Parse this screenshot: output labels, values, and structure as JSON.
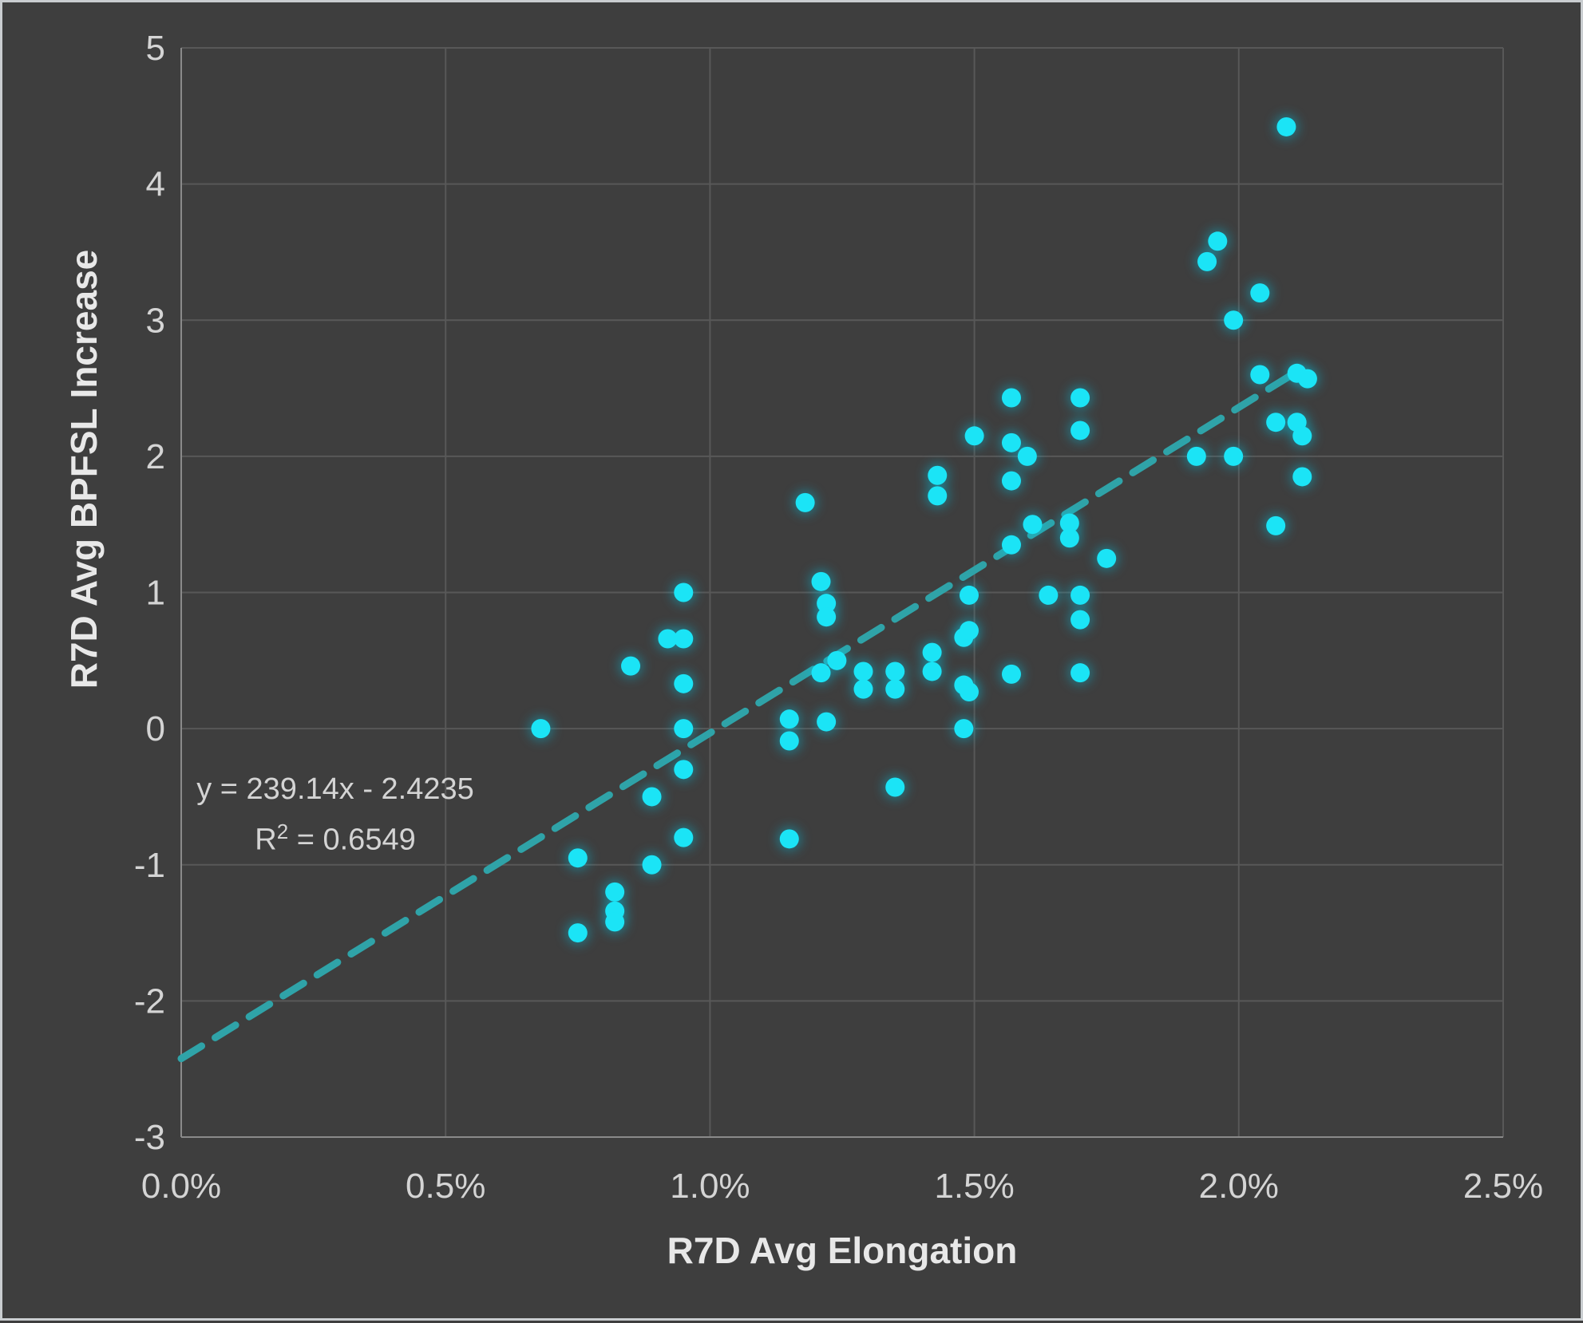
{
  "chart_data": {
    "type": "scatter",
    "title": "",
    "xlabel": "R7D Avg Elongation",
    "ylabel": "R7D Avg BPFSL Increase",
    "xlim": [
      0,
      2.5
    ],
    "ylim": [
      -3,
      5
    ],
    "grid": true,
    "x_tick_values": [
      0,
      0.5,
      1.0,
      1.5,
      2.0,
      2.5
    ],
    "x_tick_labels": [
      "0.0%",
      "0.5%",
      "1.0%",
      "1.5%",
      "2.0%",
      "2.5%"
    ],
    "y_tick_values": [
      5,
      4,
      3,
      2,
      1,
      0,
      -1,
      -2,
      -3
    ],
    "y_tick_labels": [
      "5",
      "4",
      "3",
      "2",
      "1",
      "0",
      "-1",
      "-2",
      "-3"
    ],
    "x_unit": "percent",
    "points": [
      [
        0.68,
        0.0
      ],
      [
        0.75,
        -0.95
      ],
      [
        0.75,
        -1.5
      ],
      [
        0.82,
        -1.2
      ],
      [
        0.82,
        -1.34
      ],
      [
        0.82,
        -1.42
      ],
      [
        0.85,
        0.46
      ],
      [
        0.89,
        -0.5
      ],
      [
        0.89,
        -1.0
      ],
      [
        0.92,
        0.66
      ],
      [
        0.95,
        1.0
      ],
      [
        0.95,
        0.66
      ],
      [
        0.95,
        0.33
      ],
      [
        0.95,
        0.0
      ],
      [
        0.95,
        -0.3
      ],
      [
        0.95,
        -0.8
      ],
      [
        1.15,
        0.07
      ],
      [
        1.15,
        -0.09
      ],
      [
        1.15,
        -0.81
      ],
      [
        1.18,
        1.66
      ],
      [
        1.21,
        1.08
      ],
      [
        1.22,
        0.92
      ],
      [
        1.22,
        0.82
      ],
      [
        1.21,
        0.41
      ],
      [
        1.22,
        0.05
      ],
      [
        1.24,
        0.5
      ],
      [
        1.29,
        0.42
      ],
      [
        1.29,
        0.29
      ],
      [
        1.35,
        0.42
      ],
      [
        1.35,
        0.29
      ],
      [
        1.35,
        -0.43
      ],
      [
        1.42,
        0.56
      ],
      [
        1.42,
        0.42
      ],
      [
        1.43,
        1.86
      ],
      [
        1.43,
        1.71
      ],
      [
        1.48,
        0.67
      ],
      [
        1.49,
        0.72
      ],
      [
        1.48,
        0.32
      ],
      [
        1.49,
        0.27
      ],
      [
        1.48,
        0.0
      ],
      [
        1.49,
        0.98
      ],
      [
        1.5,
        2.15
      ],
      [
        1.57,
        2.43
      ],
      [
        1.57,
        2.1
      ],
      [
        1.57,
        1.82
      ],
      [
        1.57,
        1.35
      ],
      [
        1.57,
        0.4
      ],
      [
        1.6,
        2.0
      ],
      [
        1.61,
        1.5
      ],
      [
        1.64,
        0.98
      ],
      [
        1.68,
        1.51
      ],
      [
        1.68,
        1.4
      ],
      [
        1.7,
        2.43
      ],
      [
        1.7,
        2.19
      ],
      [
        1.7,
        0.98
      ],
      [
        1.7,
        0.8
      ],
      [
        1.7,
        0.41
      ],
      [
        1.75,
        1.25
      ],
      [
        1.92,
        2.0
      ],
      [
        1.94,
        3.43
      ],
      [
        1.96,
        3.58
      ],
      [
        1.99,
        3.0
      ],
      [
        1.99,
        2.0
      ],
      [
        2.04,
        3.2
      ],
      [
        2.04,
        2.6
      ],
      [
        2.07,
        2.25
      ],
      [
        2.07,
        1.49
      ],
      [
        2.09,
        4.42
      ],
      [
        2.11,
        2.61
      ],
      [
        2.13,
        2.57
      ],
      [
        2.11,
        2.25
      ],
      [
        2.12,
        2.15
      ],
      [
        2.12,
        1.85
      ]
    ],
    "trendline": {
      "equation": "y = 239.14x - 2.4235",
      "r2_prefix": "R",
      "r2_sup": "2",
      "r2_rest": " = 0.6549",
      "slope": 239.14,
      "intercept": -2.4235,
      "x_start_pct": 0,
      "x_end_pct": 2.118,
      "style": "dashed"
    },
    "legend": null,
    "colors": {
      "background": "#3e3e3e",
      "point": "#1be4f6",
      "point_glow": "#00c9ea",
      "trendline": "#2fa3a8",
      "gridline": "#585858",
      "axis_line": "#8a8a8a",
      "tick_label": "#d4d4d4",
      "axis_title": "#e8e8e8",
      "annotation_text": "#d4d4d4",
      "frame_border": "#c9cdd0"
    }
  }
}
